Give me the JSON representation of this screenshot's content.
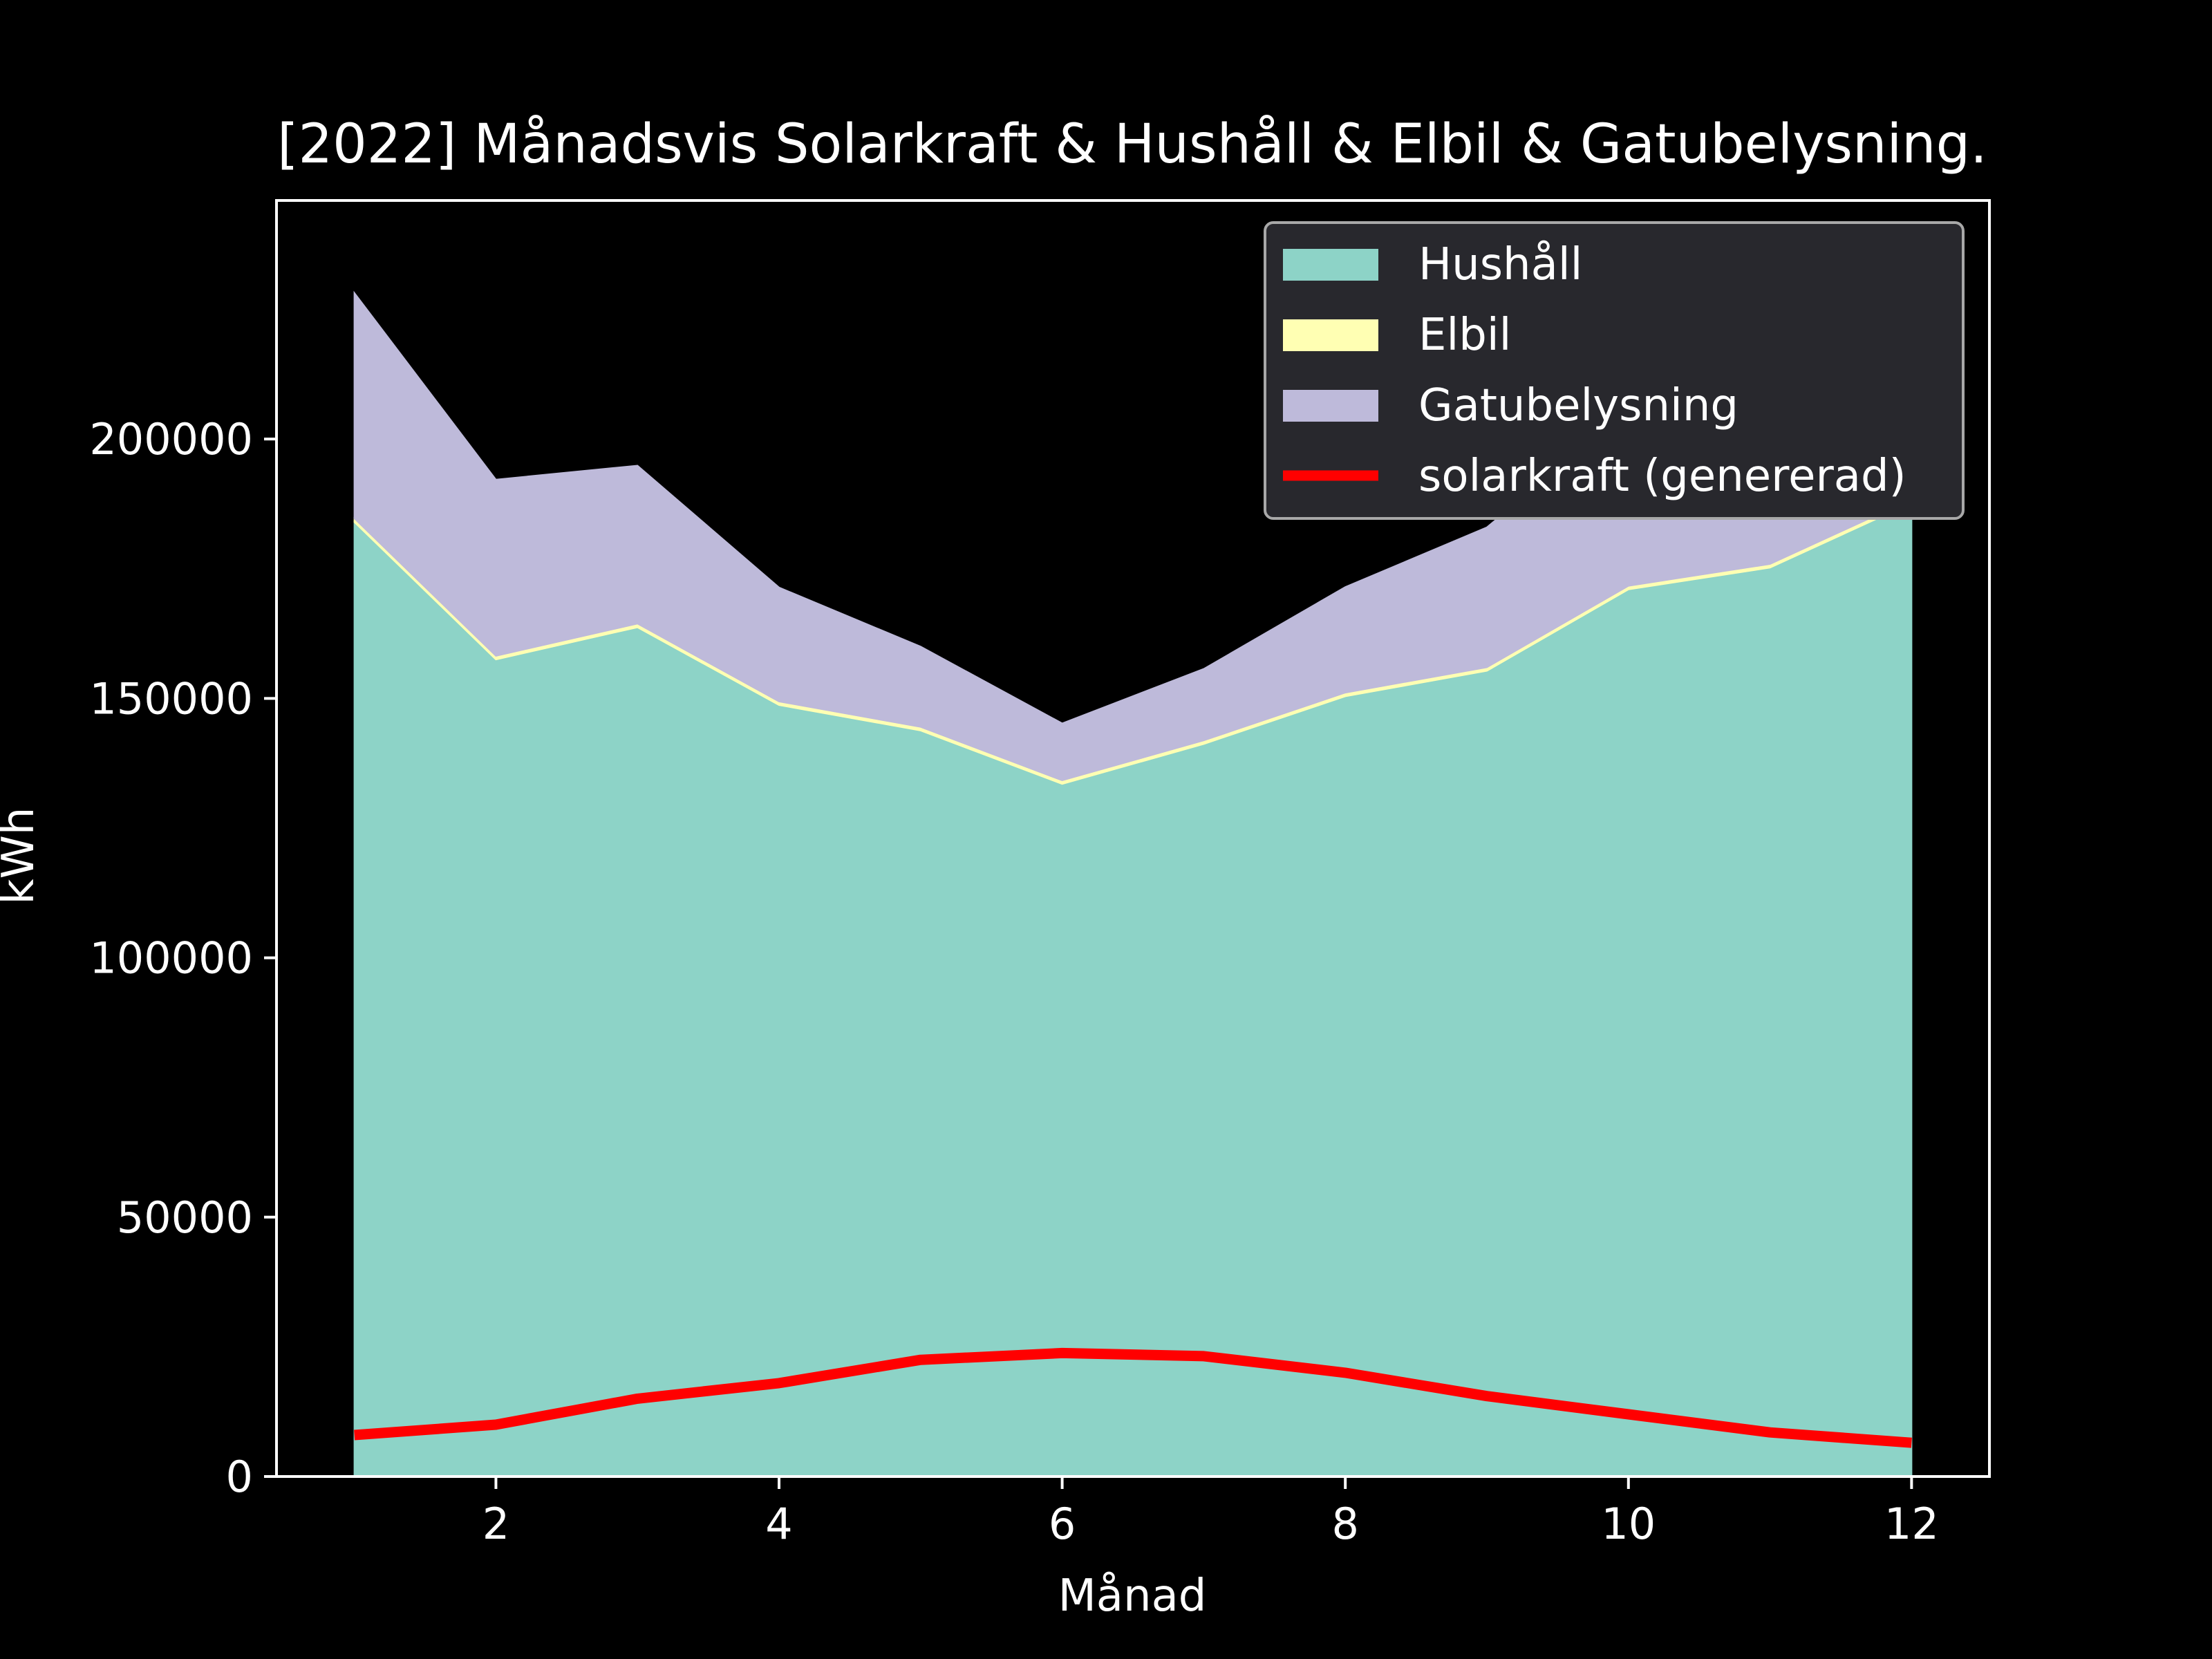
{
  "chart_data": {
    "type": "area",
    "title": "[2022] Månadsvis Solarkraft & Hushåll & Elbil & Gatubelysning.",
    "xlabel": "Månad",
    "ylabel": "kWh",
    "xlim": [
      0.45,
      12.55
    ],
    "ylim": [
      0,
      246000
    ],
    "xticks": [
      2,
      4,
      6,
      8,
      10,
      12
    ],
    "yticks": [
      0,
      50000,
      100000,
      150000,
      200000
    ],
    "x": [
      1,
      2,
      3,
      4,
      5,
      6,
      7,
      8,
      9,
      10,
      11,
      12
    ],
    "stacked_series": [
      {
        "name": "Hushåll",
        "color": "#8dd3c7",
        "values": [
          184000,
          157500,
          163700,
          148700,
          143800,
          133500,
          141200,
          150400,
          155300,
          171000,
          175200,
          187700
        ]
      },
      {
        "name": "Elbil",
        "color": "#ffffb3",
        "values": [
          700,
          700,
          700,
          700,
          700,
          700,
          700,
          700,
          700,
          700,
          700,
          700
        ]
      },
      {
        "name": "Gatubelysning",
        "color": "#bebada",
        "values": [
          43500,
          34000,
          30500,
          22000,
          15500,
          11000,
          13800,
          20400,
          27000,
          34000,
          41100,
          46700
        ]
      }
    ],
    "line_series": [
      {
        "name": "solarkraft (genererad)",
        "color": "#ff0000",
        "values": [
          8000,
          10000,
          15000,
          18000,
          22500,
          23800,
          23200,
          20000,
          15500,
          12000,
          8500,
          6500
        ]
      }
    ],
    "legend": {
      "placement": "top-right",
      "items": [
        "Hushåll",
        "Elbil",
        "Gatubelysning",
        "solarkraft (genererad)"
      ]
    }
  }
}
